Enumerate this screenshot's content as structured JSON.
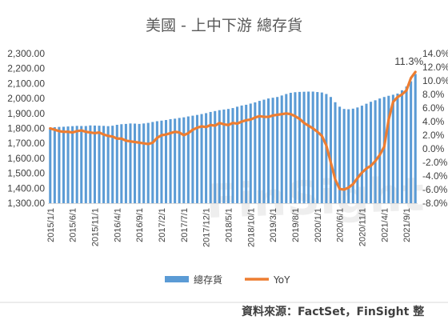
{
  "chart_data": {
    "type": "bar+line",
    "title": "美國 - 上中下游 總存貨",
    "source": "資料來源：FactSet，FinSight 整",
    "watermark": "FinSight",
    "left_axis": {
      "ylim": [
        1300,
        2300
      ],
      "ticks": [
        "2,300.00",
        "2,200.00",
        "2,100.00",
        "2,000.00",
        "1,900.00",
        "1,800.00",
        "1,700.00",
        "1,600.00",
        "1,500.00",
        "1,400.00",
        "1,300.00"
      ]
    },
    "right_axis": {
      "ylim": [
        -8,
        14
      ],
      "ticks": [
        "14.0%",
        "12.0%",
        "10.0%",
        "8.0%",
        "6.0%",
        "4.0%",
        "2.0%",
        "0.0%",
        "-2.0%",
        "-4.0%",
        "-6.0%",
        "-8.0%"
      ]
    },
    "x_tick_labels": [
      "2015/1/1",
      "2015/6/1",
      "2015/11/1",
      "2016/4/1",
      "2016/9/1",
      "2017/2/1",
      "2017/7/1",
      "2017/12/1",
      "2018/5/1",
      "2018/10/1",
      "2019/3/1",
      "2019/8/1",
      "2020/1/1",
      "2020/6/1",
      "2020/11/1",
      "2021/4/1",
      "2021/9/1"
    ],
    "months": [
      "2015/1",
      "2015/2",
      "2015/3",
      "2015/4",
      "2015/5",
      "2015/6",
      "2015/7",
      "2015/8",
      "2015/9",
      "2015/10",
      "2015/11",
      "2015/12",
      "2016/1",
      "2016/2",
      "2016/3",
      "2016/4",
      "2016/5",
      "2016/6",
      "2016/7",
      "2016/8",
      "2016/9",
      "2016/10",
      "2016/11",
      "2016/12",
      "2017/1",
      "2017/2",
      "2017/3",
      "2017/4",
      "2017/5",
      "2017/6",
      "2017/7",
      "2017/8",
      "2017/9",
      "2017/10",
      "2017/11",
      "2017/12",
      "2018/1",
      "2018/2",
      "2018/3",
      "2018/4",
      "2018/5",
      "2018/6",
      "2018/7",
      "2018/8",
      "2018/9",
      "2018/10",
      "2018/11",
      "2018/12",
      "2019/1",
      "2019/2",
      "2019/3",
      "2019/4",
      "2019/5",
      "2019/6",
      "2019/7",
      "2019/8",
      "2019/9",
      "2019/10",
      "2019/11",
      "2019/12",
      "2020/1",
      "2020/2",
      "2020/3",
      "2020/4",
      "2020/5",
      "2020/6",
      "2020/7",
      "2020/8",
      "2020/9",
      "2020/10",
      "2020/11",
      "2020/12",
      "2021/1",
      "2021/2",
      "2021/3",
      "2021/4",
      "2021/5",
      "2021/6",
      "2021/7",
      "2021/8",
      "2021/9",
      "2021/10",
      "2021/11"
    ],
    "series": [
      {
        "name": "總存貨",
        "type": "bar",
        "axis": "left",
        "color": "#5B9BD5",
        "values": [
          1805,
          1808,
          1810,
          1811,
          1813,
          1815,
          1817,
          1816,
          1816,
          1820,
          1819,
          1818,
          1817,
          1815,
          1818,
          1824,
          1828,
          1830,
          1833,
          1832,
          1830,
          1833,
          1837,
          1843,
          1848,
          1852,
          1856,
          1862,
          1865,
          1870,
          1874,
          1880,
          1885,
          1890,
          1896,
          1902,
          1910,
          1916,
          1922,
          1926,
          1930,
          1936,
          1945,
          1953,
          1958,
          1966,
          1974,
          1984,
          1992,
          2000,
          2005,
          2010,
          2020,
          2030,
          2038,
          2042,
          2044,
          2045,
          2046,
          2046,
          2043,
          2040,
          2030,
          2010,
          1975,
          1945,
          1930,
          1928,
          1932,
          1940,
          1952,
          1965,
          1978,
          1988,
          2000,
          2010,
          2018,
          2025,
          2033,
          2055,
          2080,
          2115,
          2164
        ]
      },
      {
        "name": "YoY",
        "type": "line",
        "axis": "right",
        "color": "#ED7D31",
        "values": [
          3.0,
          2.8,
          2.6,
          2.5,
          2.5,
          2.4,
          2.6,
          2.7,
          2.5,
          2.4,
          2.3,
          2.4,
          2.1,
          1.9,
          1.8,
          1.5,
          1.5,
          1.2,
          1.1,
          1.0,
          0.9,
          0.8,
          0.7,
          0.9,
          1.6,
          2.0,
          2.1,
          2.3,
          2.5,
          2.4,
          2.0,
          2.3,
          2.8,
          3.1,
          3.3,
          3.2,
          3.5,
          3.4,
          3.8,
          3.6,
          3.5,
          3.8,
          3.7,
          4.0,
          4.2,
          4.3,
          4.6,
          4.8,
          4.7,
          4.7,
          4.9,
          5.0,
          5.1,
          5.2,
          5.1,
          4.8,
          4.4,
          3.8,
          3.4,
          3.0,
          2.5,
          1.9,
          0.5,
          -2.0,
          -4.5,
          -5.9,
          -6.0,
          -5.7,
          -5.2,
          -4.3,
          -3.5,
          -2.9,
          -2.5,
          -1.8,
          -0.9,
          0.3,
          4.3,
          6.9,
          7.6,
          8.0,
          8.6,
          10.4,
          11.3
        ]
      }
    ],
    "annotations": [
      {
        "text": "11.3%",
        "series": "YoY",
        "index": 82
      }
    ],
    "legend": {
      "position": "bottom",
      "entries": [
        "總存貨",
        "YoY"
      ]
    },
    "grid": false
  }
}
